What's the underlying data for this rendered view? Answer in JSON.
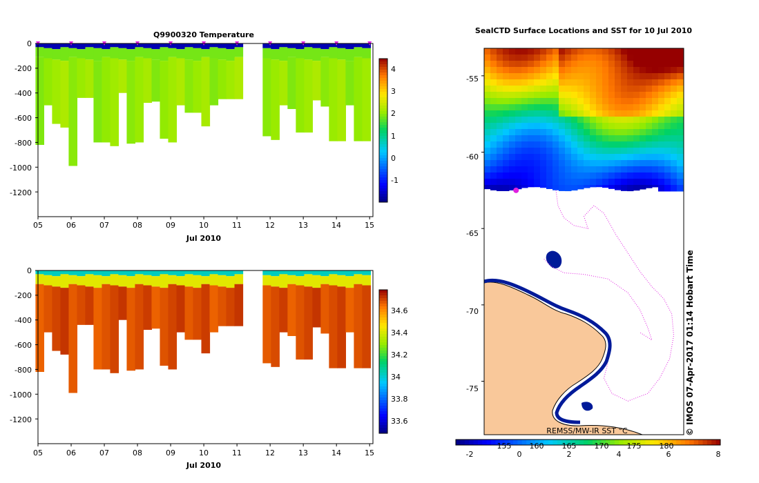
{
  "chart_data": [
    {
      "type": "heatmap",
      "title": "Q9900320  Temperature",
      "xlabel": "Jul 2010",
      "ylabel": "",
      "x_ticks": [
        "05",
        "06",
        "07",
        "08",
        "09",
        "10",
        "11",
        "12",
        "13",
        "14",
        "15"
      ],
      "y_ticks": [
        "0",
        "-200",
        "-400",
        "-600",
        "-800",
        "-1000",
        "-1200"
      ],
      "ylim": [
        -1400,
        0
      ],
      "xlim": [
        5.0,
        15.1
      ],
      "colorbar": {
        "ticks": [
          "-1",
          "0",
          "1",
          "2",
          "3",
          "4"
        ],
        "range": [
          -1.8,
          4.6
        ]
      },
      "surface_value": -1.5,
      "upper_layer": {
        "depth_to": -110,
        "value": 2.0
      },
      "deep_value": 2.2,
      "profile_days": [
        5.05,
        5.3,
        5.55,
        5.8,
        6.05,
        6.3,
        6.55,
        6.8,
        7.05,
        7.3,
        7.55,
        7.8,
        8.05,
        8.3,
        8.55,
        8.8,
        9.05,
        9.3,
        9.55,
        9.8,
        10.05,
        10.3,
        10.55,
        10.8,
        11.05,
        11.9,
        12.15,
        12.4,
        12.65,
        12.9,
        13.15,
        13.4,
        13.65,
        13.9,
        14.15,
        14.4,
        14.65,
        14.9
      ],
      "profile_max_depths": [
        -820,
        -500,
        -650,
        -680,
        -990,
        -440,
        -440,
        -800,
        -800,
        -830,
        -400,
        -810,
        -800,
        -480,
        -470,
        -770,
        -800,
        -500,
        -560,
        -560,
        -670,
        -500,
        -450,
        -450,
        -450,
        -750,
        -780,
        -500,
        -530,
        -720,
        -720,
        -460,
        -510,
        -790,
        -790,
        -500,
        -790,
        -790
      ],
      "data_gap": [
        11.1,
        11.8
      ],
      "markers_x": [
        5.0,
        6.0,
        7.0,
        8.0,
        9.0,
        10.0,
        11.0,
        12.0,
        13.0,
        14.0,
        15.0
      ]
    },
    {
      "type": "heatmap",
      "title": "",
      "xlabel": "Jul 2010",
      "ylabel": "",
      "x_ticks": [
        "05",
        "06",
        "07",
        "08",
        "09",
        "10",
        "11",
        "12",
        "13",
        "14",
        "15"
      ],
      "y_ticks": [
        "0",
        "-200",
        "-400",
        "-600",
        "-800",
        "-1000",
        "-1200"
      ],
      "ylim": [
        -1400,
        0
      ],
      "xlim": [
        5.0,
        15.1
      ],
      "colorbar": {
        "ticks": [
          "33.6",
          "33.8",
          "34",
          "34.2",
          "34.4",
          "34.6"
        ],
        "range": [
          33.45,
          34.78
        ]
      },
      "surface_value": 34.0,
      "upper_layer": {
        "depth_to": -110,
        "value": 34.4
      },
      "deep_value": 34.68,
      "profile_days": [
        5.05,
        5.3,
        5.55,
        5.8,
        6.05,
        6.3,
        6.55,
        6.8,
        7.05,
        7.3,
        7.55,
        7.8,
        8.05,
        8.3,
        8.55,
        8.8,
        9.05,
        9.3,
        9.55,
        9.8,
        10.05,
        10.3,
        10.55,
        10.8,
        11.05,
        11.9,
        12.15,
        12.4,
        12.65,
        12.9,
        13.15,
        13.4,
        13.65,
        13.9,
        14.15,
        14.4,
        14.65,
        14.9
      ],
      "profile_max_depths": [
        -820,
        -500,
        -650,
        -680,
        -990,
        -440,
        -440,
        -800,
        -800,
        -830,
        -400,
        -810,
        -800,
        -480,
        -470,
        -770,
        -800,
        -500,
        -560,
        -560,
        -670,
        -500,
        -450,
        -450,
        -450,
        -750,
        -780,
        -500,
        -530,
        -720,
        -720,
        -460,
        -510,
        -790,
        -790,
        -500,
        -790,
        -790
      ],
      "data_gap": [
        11.1,
        11.8
      ]
    },
    {
      "type": "heatmap",
      "title": "SealCTD Surface Locations and SST for 10 Jul 2010",
      "y_ticks": [
        "-55",
        "-60",
        "-65",
        "-70",
        "-75"
      ],
      "ylim": [
        -78.5,
        -53.2
      ],
      "colorbar": {
        "label": "REMSS/MW-IR SST °C",
        "ticks": [
          "-2",
          "0",
          "2",
          "4",
          "6",
          "8"
        ],
        "overlay_ticks": [
          "155",
          "160",
          "165",
          "170",
          "175",
          "180"
        ],
        "range": [
          -2.5,
          8.2
        ]
      },
      "sst_ice_edge_lat": -62.4,
      "track_points": [
        [
          0.36,
          -62.5
        ],
        [
          0.37,
          -63.5
        ],
        [
          0.4,
          -64.3
        ],
        [
          0.45,
          -64.8
        ],
        [
          0.52,
          -65.0
        ],
        [
          0.5,
          -64.2
        ],
        [
          0.55,
          -63.5
        ],
        [
          0.6,
          -64.0
        ],
        [
          0.66,
          -65.4
        ],
        [
          0.72,
          -66.6
        ],
        [
          0.78,
          -67.8
        ],
        [
          0.84,
          -68.8
        ],
        [
          0.9,
          -69.6
        ],
        [
          0.94,
          -70.6
        ],
        [
          0.95,
          -72.0
        ],
        [
          0.93,
          -73.5
        ],
        [
          0.88,
          -74.8
        ],
        [
          0.82,
          -75.8
        ],
        [
          0.72,
          -76.3
        ],
        [
          0.64,
          -75.8
        ],
        [
          0.6,
          -74.8
        ],
        [
          0.62,
          -73.8
        ]
      ],
      "track_branch": [
        [
          0.3,
          -67.0
        ],
        [
          0.34,
          -67.5
        ],
        [
          0.4,
          -67.9
        ],
        [
          0.5,
          -68.0
        ],
        [
          0.62,
          -68.3
        ],
        [
          0.72,
          -69.2
        ],
        [
          0.78,
          -70.3
        ],
        [
          0.82,
          -71.5
        ],
        [
          0.84,
          -72.3
        ],
        [
          0.78,
          -71.8
        ]
      ],
      "current_location": [
        0.16,
        -62.5
      ],
      "credit": "© IMOS 07-Apr-2017 01:14 Hobart Time"
    }
  ],
  "colors": {
    "ice": "#ffffff",
    "land": "#f9c89a",
    "coast": "#001a99",
    "track": "#e020e0",
    "marker": "#e020e0"
  }
}
